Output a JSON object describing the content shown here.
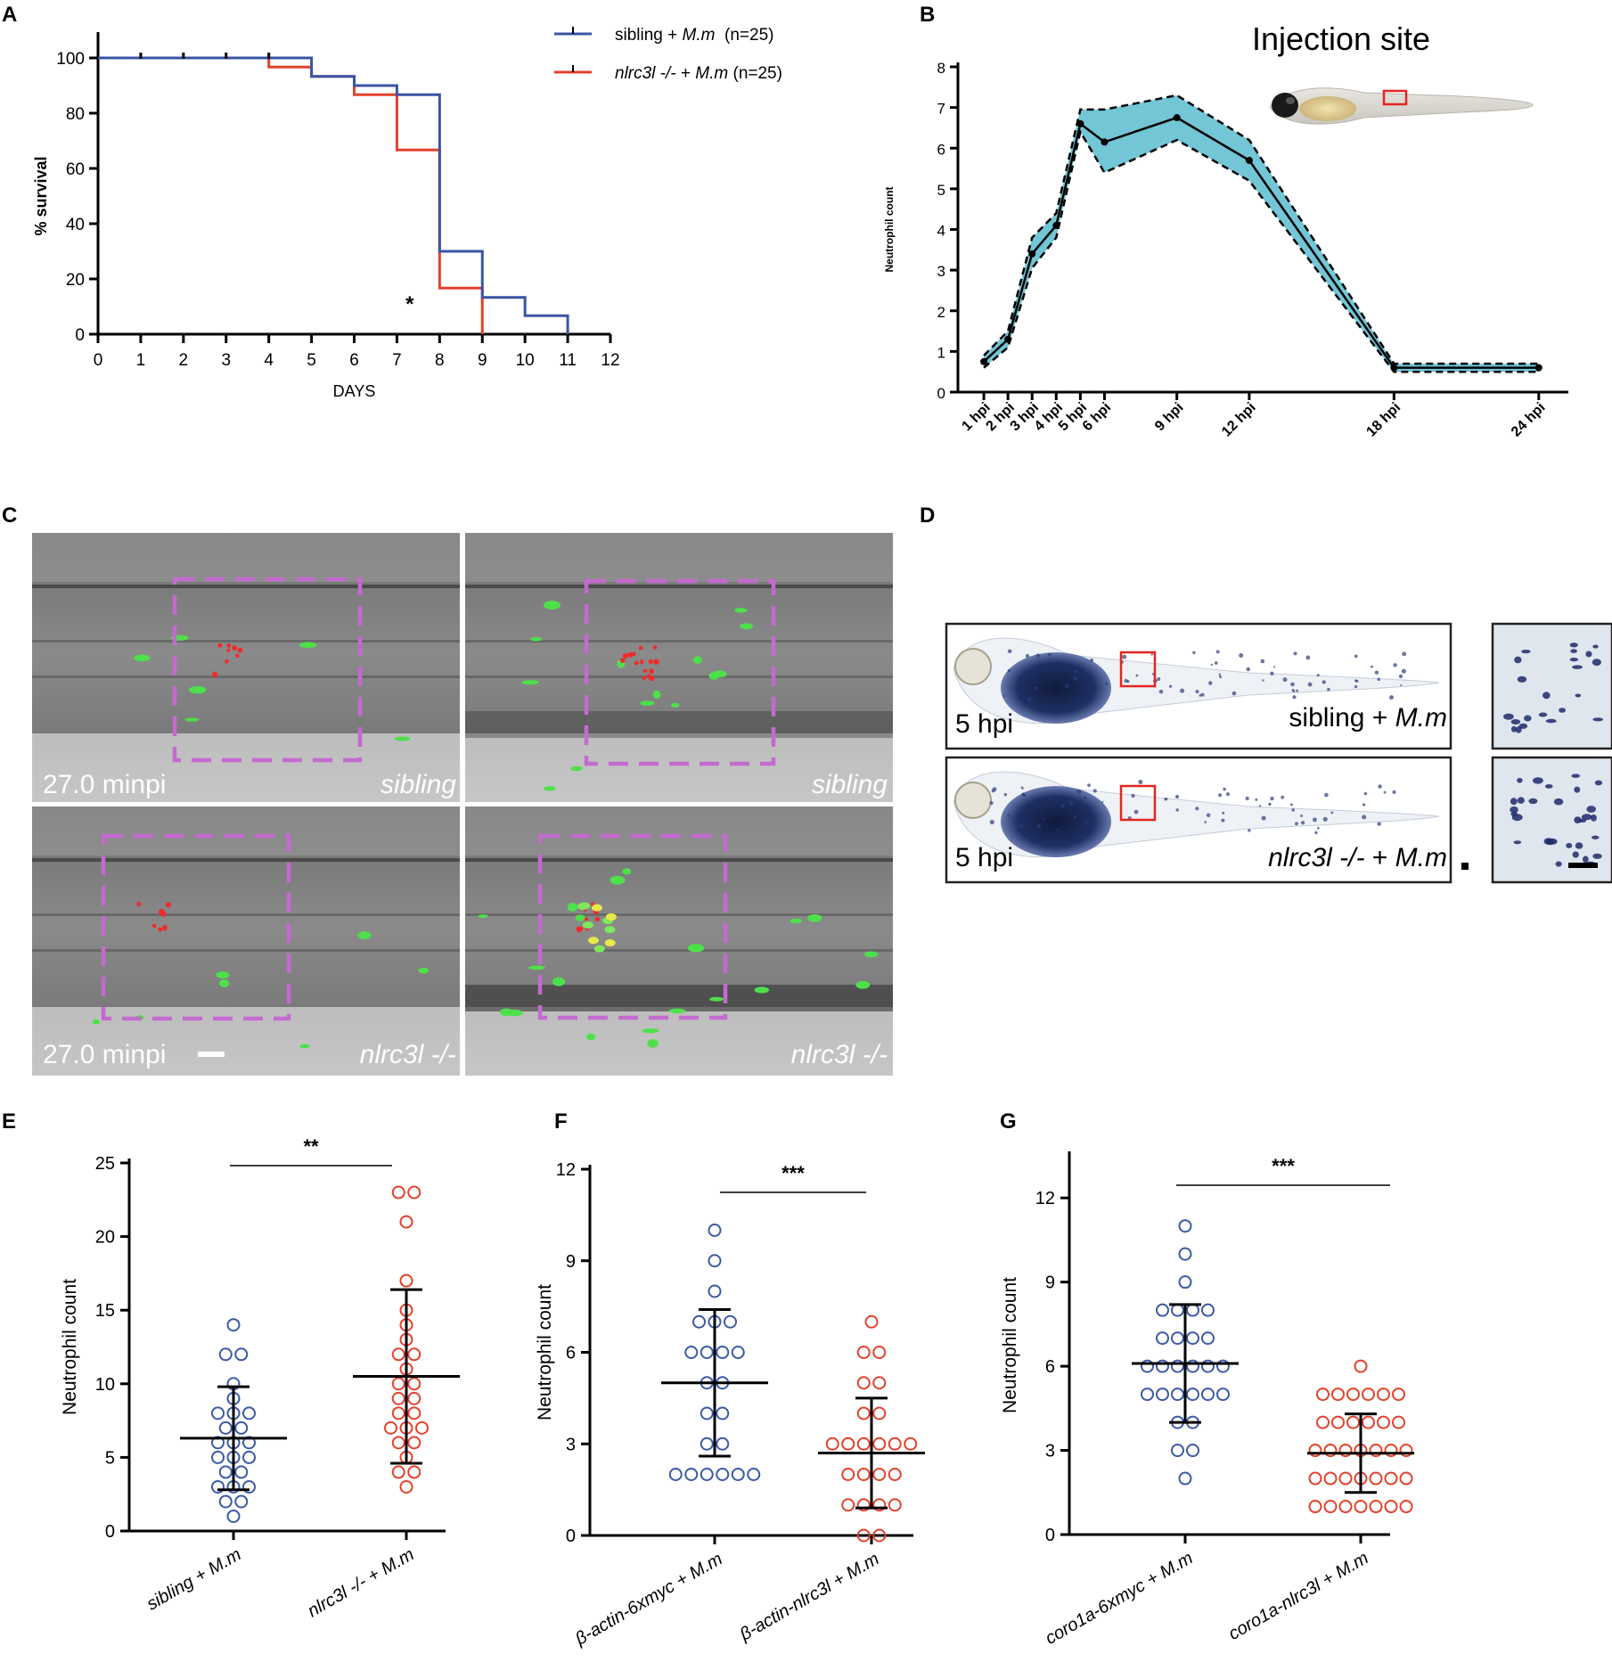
{
  "panel_letters": [
    "A",
    "B",
    "C",
    "D",
    "E",
    "F",
    "G"
  ],
  "chart_data": [
    {
      "panel": "A",
      "type": "line",
      "subtype": "kaplan-meier",
      "xlabel": "DAYS",
      "ylabel": "% survival",
      "xlim": [
        0,
        12
      ],
      "ylim": [
        0,
        100
      ],
      "xticks": [
        "0",
        "1",
        "2",
        "3",
        "4",
        "5",
        "6",
        "7",
        "8",
        "9",
        "10",
        "11",
        "12"
      ],
      "yticks": [
        "0",
        "20",
        "40",
        "60",
        "80",
        "100"
      ],
      "series": [
        {
          "name": "sibling + ",
          "name_italic": "M.m",
          "name_suffix": "  (n=25)",
          "color": "#3a54a4",
          "steps": [
            [
              0,
              100
            ],
            [
              5,
              100
            ],
            [
              5,
              93.3
            ],
            [
              6,
              93.3
            ],
            [
              6,
              90
            ],
            [
              7,
              90
            ],
            [
              7,
              86.7
            ],
            [
              8,
              86.7
            ],
            [
              8,
              30
            ],
            [
              9,
              30
            ],
            [
              9,
              13.3
            ],
            [
              10,
              13.3
            ],
            [
              10,
              6.7
            ],
            [
              11,
              6.7
            ],
            [
              11,
              0
            ]
          ],
          "censored_x": [
            1,
            2,
            3,
            4
          ]
        },
        {
          "name_italic": "nlrc3l -/-",
          "name": " + ",
          "name_italic2": "M.m",
          "name_suffix": " (n=25)",
          "color": "#e3412b",
          "steps": [
            [
              0,
              100
            ],
            [
              4,
              100
            ],
            [
              4,
              96.7
            ],
            [
              5,
              96.7
            ],
            [
              5,
              93.3
            ],
            [
              6,
              93.3
            ],
            [
              6,
              86.7
            ],
            [
              7,
              86.7
            ],
            [
              7,
              66.7
            ],
            [
              8,
              66.7
            ],
            [
              8,
              16.7
            ],
            [
              9,
              16.7
            ],
            [
              9,
              0
            ]
          ],
          "censored_x": []
        }
      ],
      "annotation": {
        "text": "*",
        "x": 7.3,
        "y": 11
      }
    },
    {
      "panel": "B",
      "type": "line",
      "subtype": "mean-with-band",
      "ylabel": "Neutrophil count",
      "ylim": [
        0,
        8
      ],
      "yticks": [
        "0",
        "1",
        "2",
        "3",
        "4",
        "5",
        "6",
        "7",
        "8"
      ],
      "x_hours": [
        1,
        2,
        3,
        4,
        5,
        6,
        9,
        12,
        18,
        24
      ],
      "x_labels": [
        "1 hpi",
        "2 hpi",
        "3 hpi",
        "4 hpi",
        "5 hpi",
        "6 hpi",
        "9 hpi",
        "12 hpi",
        "18 hpi",
        "24 hpi"
      ],
      "mean": [
        0.75,
        1.3,
        3.4,
        4.1,
        6.6,
        6.15,
        6.75,
        5.7,
        0.6,
        0.6
      ],
      "upper": [
        0.9,
        1.5,
        3.8,
        4.4,
        6.95,
        6.95,
        7.3,
        6.2,
        0.7,
        0.7
      ],
      "lower": [
        0.6,
        1.1,
        3.05,
        3.8,
        6.4,
        5.4,
        6.2,
        5.2,
        0.5,
        0.5
      ],
      "band_color": "#72c6d6",
      "inset_title": "Injection site"
    },
    {
      "panel": "E",
      "type": "scatter",
      "subtype": "dot-plot",
      "ylabel": "Neutrophil count",
      "ylim": [
        0,
        25
      ],
      "yticks": [
        "0",
        "5",
        "10",
        "15",
        "20",
        "25"
      ],
      "categories": [
        {
          "label": "sibling + M.m",
          "color": "#3a5aa8",
          "values": [
            1,
            2,
            2,
            3,
            3,
            3,
            4,
            4,
            5,
            5,
            5,
            6,
            6,
            6,
            7,
            7,
            8,
            8,
            8,
            9,
            10,
            12,
            12,
            14
          ],
          "mean": 6.3,
          "sd_low": 2.8,
          "sd_high": 9.8
        },
        {
          "label": "nlrc3l -/- + M.m",
          "color": "#e3412b",
          "values": [
            3,
            4,
            4,
            5,
            6,
            6,
            7,
            7,
            7,
            8,
            8,
            9,
            9,
            10,
            10,
            11,
            12,
            12,
            13,
            14,
            15,
            17,
            21,
            23,
            23
          ],
          "mean": 10.5,
          "sd_low": 4.6,
          "sd_high": 16.4
        }
      ],
      "significance": "**"
    },
    {
      "panel": "F",
      "type": "scatter",
      "subtype": "dot-plot",
      "ylabel": "Neutrophil count",
      "ylim": [
        0,
        12
      ],
      "yticks": [
        "0",
        "3",
        "6",
        "9",
        "12"
      ],
      "categories": [
        {
          "label": "β-actin-6xmyc + M.m",
          "color": "#3a5aa8",
          "values": [
            2,
            2,
            2,
            2,
            2,
            2,
            3,
            3,
            4,
            4,
            5,
            5,
            6,
            6,
            6,
            6,
            7,
            7,
            7,
            8,
            9,
            10
          ],
          "mean": 5.0,
          "sd_low": 2.6,
          "sd_high": 7.4
        },
        {
          "label": "β-actin-nlrc3l + M.m",
          "color": "#e3412b",
          "values": [
            0,
            0,
            1,
            1,
            1,
            1,
            2,
            2,
            2,
            2,
            3,
            3,
            3,
            3,
            3,
            3,
            4,
            4,
            5,
            5,
            6,
            6,
            7
          ],
          "mean": 2.7,
          "sd_low": 0.9,
          "sd_high": 4.5
        }
      ],
      "significance": "***"
    },
    {
      "panel": "G",
      "type": "scatter",
      "subtype": "dot-plot",
      "ylabel": "Neutrophil count",
      "ylim": [
        0,
        13.5
      ],
      "yticks": [
        "0",
        "3",
        "6",
        "9",
        "12"
      ],
      "categories": [
        {
          "label": "coro1a-6xmyc + M.m",
          "color": "#3a5aa8",
          "values": [
            2,
            3,
            3,
            4,
            4,
            5,
            5,
            5,
            5,
            5,
            5,
            6,
            6,
            6,
            6,
            6,
            6,
            7,
            7,
            7,
            7,
            8,
            8,
            8,
            8,
            9,
            10,
            11
          ],
          "mean": 6.1,
          "sd_low": 4.0,
          "sd_high": 8.2
        },
        {
          "label": "coro1a-nlrc3l + M.m",
          "color": "#e3412b",
          "values": [
            1,
            1,
            1,
            1,
            1,
            1,
            1,
            2,
            2,
            2,
            2,
            2,
            2,
            2,
            3,
            3,
            3,
            3,
            3,
            3,
            3,
            4,
            4,
            4,
            4,
            4,
            4,
            5,
            5,
            5,
            5,
            5,
            5,
            6
          ],
          "mean": 2.9,
          "sd_low": 1.5,
          "sd_high": 4.3
        }
      ],
      "significance": "***"
    }
  ],
  "panel_c": {
    "time_label": "27.0 minpi",
    "genotype_top": "sibling",
    "genotype_bottom": "nlrc3l -/-"
  },
  "panel_d": {
    "time_label": "5 hpi",
    "label_top": "sibling + ",
    "label_top_italic": "M.m",
    "label_bottom_italic": "nlrc3l -/-",
    "label_bottom": " + ",
    "label_bottom_italic2": "M.m"
  }
}
